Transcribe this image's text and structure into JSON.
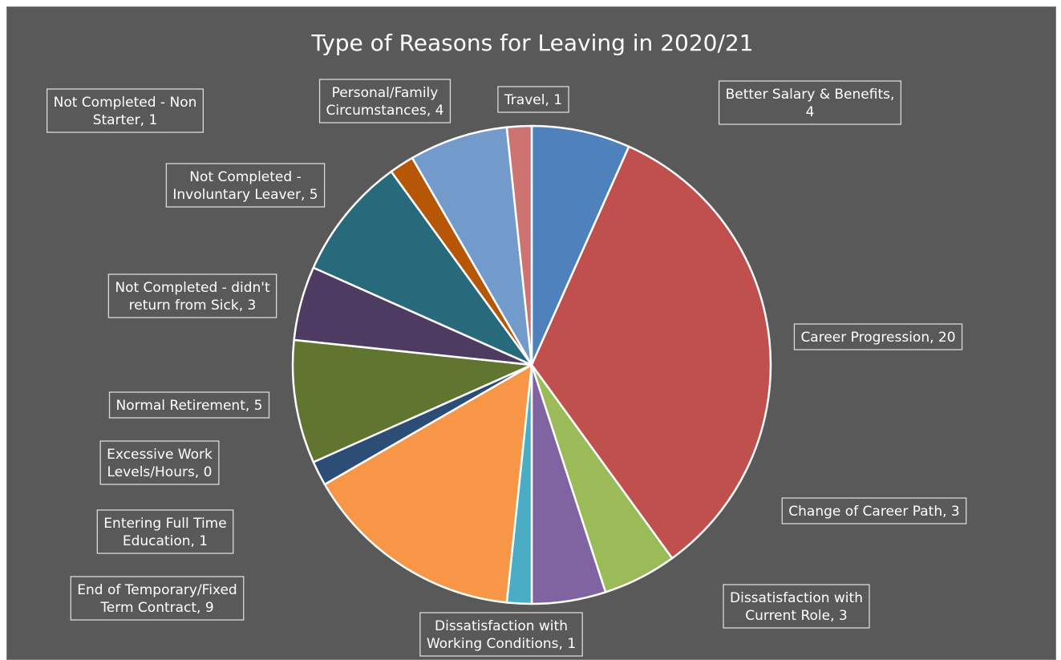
{
  "chart_data": {
    "type": "pie",
    "title": "Type of Reasons for Leaving in 2020/21",
    "slices": [
      {
        "name": "Better Salary & Benefits",
        "value": 4,
        "label": [
          "Better Salary & Benefits,",
          "4"
        ],
        "color": "#4f81bd"
      },
      {
        "name": "Career Progression",
        "value": 20,
        "label": [
          "Career Progression, 20"
        ],
        "color": "#c0504d"
      },
      {
        "name": "Change of Career Path",
        "value": 3,
        "label": [
          "Change of Career Path, 3"
        ],
        "color": "#9bbb59"
      },
      {
        "name": "Dissatisfaction with Current Role",
        "value": 3,
        "label": [
          "Dissatisfaction with",
          "Current Role, 3"
        ],
        "color": "#8064a2"
      },
      {
        "name": "Dissatisfaction with Working Conditions",
        "value": 1,
        "label": [
          "Dissatisfaction with",
          "Working Conditions, 1"
        ],
        "color": "#4bacc6"
      },
      {
        "name": "End of Temporary/Fixed Term Contract",
        "value": 9,
        "label": [
          "End of Temporary/Fixed",
          "Term Contract, 9"
        ],
        "color": "#f79646"
      },
      {
        "name": "Entering Full Time Education",
        "value": 1,
        "label": [
          "Entering Full Time",
          "Education, 1"
        ],
        "color": "#2c4d75"
      },
      {
        "name": "Excessive Work Levels/Hours",
        "value": 0,
        "label": [
          "Excessive Work",
          "Levels/Hours, 0"
        ],
        "color": "#772c2a"
      },
      {
        "name": "Normal Retirement",
        "value": 5,
        "label": [
          "Normal Retirement, 5"
        ],
        "color": "#5f7530"
      },
      {
        "name": "Not Completed - didn't return from Sick",
        "value": 3,
        "label": [
          "Not Completed - didn't",
          "return from Sick, 3"
        ],
        "color": "#4d3b62"
      },
      {
        "name": "Not Completed - Involuntary Leaver",
        "value": 5,
        "label": [
          "Not Completed -",
          "Involuntary Leaver, 5"
        ],
        "color": "#276a7c"
      },
      {
        "name": "Not Completed - Non Starter",
        "value": 1,
        "label": [
          "Not Completed - Non",
          "Starter, 1"
        ],
        "color": "#b65708"
      },
      {
        "name": "Personal/Family Circumstances",
        "value": 4,
        "label": [
          "Personal/Family",
          "Circumstances, 4"
        ],
        "color": "#729aca"
      },
      {
        "name": "Travel",
        "value": 1,
        "label": [
          "Travel, 1"
        ],
        "color": "#cd7371"
      }
    ]
  }
}
